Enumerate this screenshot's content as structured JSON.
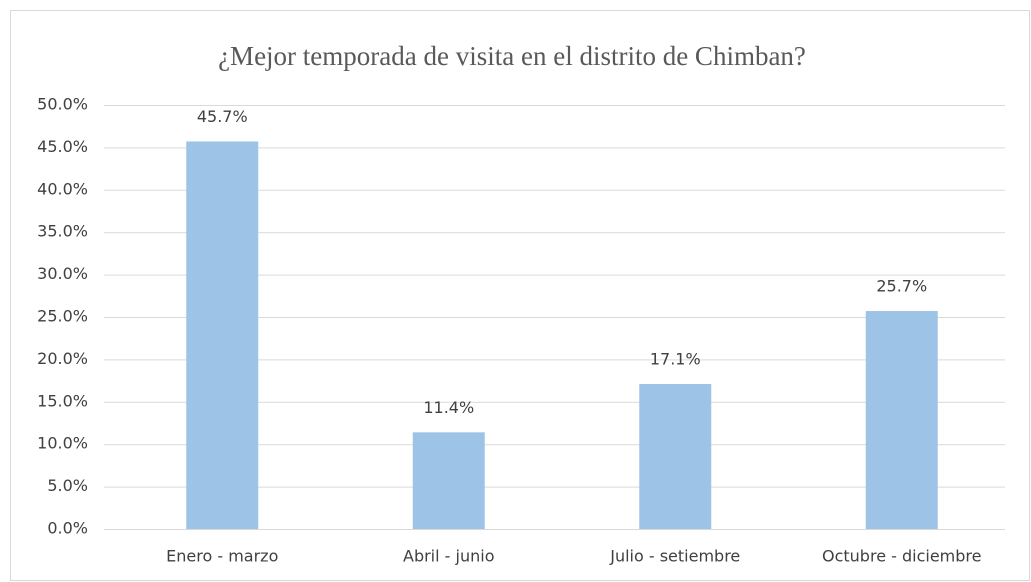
{
  "chart_data": {
    "type": "bar",
    "title": "¿Mejor temporada de visita en el distrito de Chimban?",
    "categories": [
      "Enero - marzo",
      "Abril - junio",
      "Julio - setiembre",
      "Octubre - diciembre"
    ],
    "values": [
      45.7,
      11.4,
      17.1,
      25.7
    ],
    "value_labels": [
      "45.7%",
      "11.4%",
      "17.1%",
      "25.7%"
    ],
    "color": "#9dc3e6",
    "ylim": [
      0,
      50
    ],
    "yticks": [
      {
        "value": 0,
        "label": "0.0%"
      },
      {
        "value": 5,
        "label": "5.0%"
      },
      {
        "value": 10,
        "label": "10.0%"
      },
      {
        "value": 15,
        "label": "15.0%"
      },
      {
        "value": 20,
        "label": "20.0%"
      },
      {
        "value": 25,
        "label": "25.0%"
      },
      {
        "value": 30,
        "label": "30.0%"
      },
      {
        "value": 35,
        "label": "35.0%"
      },
      {
        "value": 40,
        "label": "40.0%"
      },
      {
        "value": 45,
        "label": "45.0%"
      },
      {
        "value": 50,
        "label": "50.0%"
      }
    ],
    "grid": true
  }
}
